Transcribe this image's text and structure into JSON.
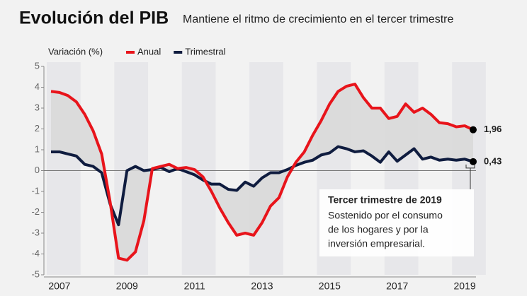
{
  "chart_data": {
    "type": "line",
    "title": "Evolución del PIB",
    "subtitle": "Mantiene el ritmo de crecimiento en el tercer trimestre",
    "y_label": "Variación (%)",
    "categories": [
      null,
      "2007",
      null,
      null,
      null,
      null,
      null,
      null,
      null,
      "2009",
      null,
      null,
      null,
      null,
      null,
      null,
      null,
      "2011",
      null,
      null,
      null,
      null,
      null,
      null,
      null,
      "2013",
      null,
      null,
      null,
      null,
      null,
      null,
      null,
      "2015",
      null,
      null,
      null,
      null,
      null,
      null,
      null,
      "2017",
      null,
      null,
      null,
      null,
      null,
      null,
      null,
      "2019",
      null
    ],
    "series": [
      {
        "name": "Anual",
        "color": "#e8141b",
        "values": [
          3.8,
          3.75,
          3.6,
          3.3,
          2.7,
          1.9,
          0.8,
          -1.5,
          -4.2,
          -4.3,
          -3.9,
          -2.4,
          0.1,
          0.2,
          0.3,
          0.1,
          0.15,
          0.05,
          -0.3,
          -1.0,
          -1.8,
          -2.5,
          -3.1,
          -3.0,
          -3.1,
          -2.5,
          -1.7,
          -1.3,
          -0.3,
          0.4,
          0.9,
          1.7,
          2.4,
          3.2,
          3.8,
          4.05,
          4.15,
          3.5,
          3.0,
          3.0,
          2.5,
          2.6,
          3.2,
          2.8,
          3.0,
          2.7,
          2.3,
          2.25,
          2.1,
          2.15,
          1.96
        ],
        "value_labels": [
          null,
          null,
          null,
          null,
          null,
          null,
          null,
          null,
          null,
          null,
          null,
          null,
          null,
          null,
          null,
          null,
          null,
          null,
          null,
          null,
          null,
          null,
          null,
          null,
          null,
          null,
          null,
          null,
          null,
          null,
          null,
          null,
          null,
          null,
          null,
          null,
          null,
          null,
          null,
          null,
          null,
          null,
          null,
          null,
          null,
          null,
          null,
          null,
          null,
          null,
          "1,96"
        ]
      },
      {
        "name": "Trimestral",
        "color": "#0f1c3f",
        "values": [
          0.9,
          0.9,
          0.8,
          0.7,
          0.3,
          0.2,
          -0.1,
          -1.6,
          -2.6,
          0.0,
          0.2,
          0.0,
          0.05,
          0.15,
          -0.05,
          0.1,
          -0.05,
          -0.2,
          -0.45,
          -0.65,
          -0.65,
          -0.9,
          -0.95,
          -0.55,
          -0.75,
          -0.35,
          -0.1,
          -0.1,
          0.05,
          0.25,
          0.4,
          0.5,
          0.75,
          0.85,
          1.15,
          1.05,
          0.9,
          0.95,
          0.7,
          0.4,
          0.9,
          0.45,
          0.75,
          1.05,
          0.55,
          0.65,
          0.5,
          0.55,
          0.5,
          0.55,
          0.43
        ],
        "value_labels": [
          null,
          null,
          null,
          null,
          null,
          null,
          null,
          null,
          null,
          null,
          null,
          null,
          null,
          null,
          null,
          null,
          null,
          null,
          null,
          null,
          null,
          null,
          null,
          null,
          null,
          null,
          null,
          null,
          null,
          null,
          null,
          null,
          null,
          null,
          null,
          null,
          null,
          null,
          null,
          null,
          null,
          null,
          null,
          null,
          null,
          null,
          null,
          null,
          null,
          null,
          "0,43"
        ]
      }
    ],
    "ylim": [
      -5,
      5
    ],
    "yticks": [
      5,
      4,
      3,
      2,
      1,
      0,
      -1,
      -2,
      -3,
      -4,
      -5
    ],
    "annotation": {
      "title": "Tercer trimestre de 2019",
      "lines": [
        "Sostenido por el consumo",
        "de los hogares y por la",
        "inversión empresarial."
      ]
    }
  }
}
